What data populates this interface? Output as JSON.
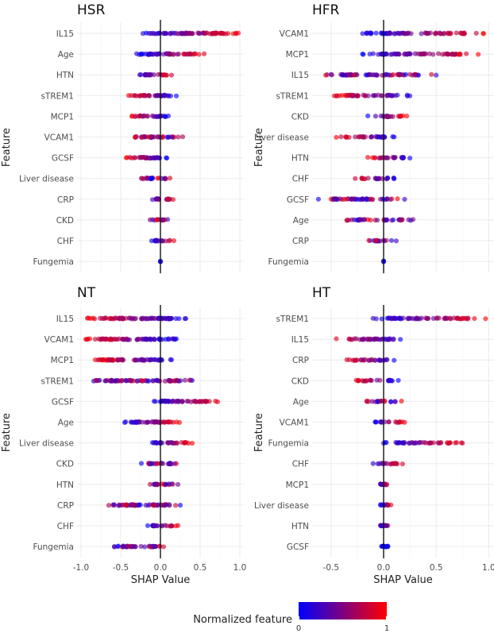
{
  "legend": {
    "title": "Normalized feature",
    "min_label": "0",
    "max_label": "1",
    "color_low": "#0000ff",
    "color_high": "#ff0000"
  },
  "colors": {
    "point_low": "#0000ff",
    "point_high": "#ff0000",
    "zero_line": "#000000",
    "grid": "#ebebeb"
  },
  "chart_data": [
    {
      "type": "scatter",
      "title": "HSR",
      "xlabel": "SHAP Value",
      "ylabel": "Feature",
      "xlim": [
        -1.05,
        1.05
      ],
      "xticks": [
        -1.0,
        -0.5,
        0.0,
        0.5,
        1.0
      ],
      "xtick_labels": [
        "-1.0",
        "-0.5",
        "0.0",
        "0.5",
        "1.0"
      ],
      "show_xticks": false,
      "grid": true,
      "features": [
        {
          "name": "IL15",
          "min": -0.22,
          "max": 0.98,
          "color_trend": "increasing"
        },
        {
          "name": "Age",
          "min": -0.3,
          "max": 0.55,
          "color_trend": "increasing"
        },
        {
          "name": "HTN",
          "min": -0.26,
          "max": 0.14,
          "color_trend": "increasing"
        },
        {
          "name": "sTREM1",
          "min": -0.4,
          "max": 0.2,
          "color_trend": "decreasing"
        },
        {
          "name": "MCP1",
          "min": -0.36,
          "max": 0.1,
          "color_trend": "decreasing"
        },
        {
          "name": "VCAM1",
          "min": -0.32,
          "max": 0.28,
          "color_trend": "mixed"
        },
        {
          "name": "GCSF",
          "min": -0.43,
          "max": 0.08,
          "color_trend": "decreasing"
        },
        {
          "name": "Liver disease",
          "min": -0.24,
          "max": 0.12,
          "color_trend": "mixed"
        },
        {
          "name": "CRP",
          "min": -0.1,
          "max": 0.16,
          "color_trend": "mixed"
        },
        {
          "name": "CKD",
          "min": -0.13,
          "max": 0.09,
          "color_trend": "mixed"
        },
        {
          "name": "CHF",
          "min": -0.11,
          "max": 0.17,
          "color_trend": "increasing"
        },
        {
          "name": "Fungemia",
          "min": 0.0,
          "max": 0.0,
          "color_trend": "low"
        }
      ]
    },
    {
      "type": "scatter",
      "title": "HFR",
      "xlabel": "SHAP Value",
      "ylabel": "Feature",
      "xlim": [
        -0.68,
        1.05
      ],
      "xticks": [
        -0.5,
        0.0,
        0.5,
        1.0
      ],
      "xtick_labels": [
        "-0.5",
        "0.0",
        "0.5",
        "1.0"
      ],
      "show_xticks": false,
      "grid": true,
      "features": [
        {
          "name": "VCAM1",
          "min": -0.2,
          "max": 0.95,
          "color_trend": "increasing"
        },
        {
          "name": "MCP1",
          "min": -0.2,
          "max": 0.9,
          "color_trend": "increasing"
        },
        {
          "name": "IL15",
          "min": -0.55,
          "max": 0.5,
          "color_trend": "mixed"
        },
        {
          "name": "sTREM1",
          "min": -0.47,
          "max": 0.25,
          "color_trend": "decreasing"
        },
        {
          "name": "CKD",
          "min": -0.15,
          "max": 0.22,
          "color_trend": "increasing"
        },
        {
          "name": "Liver disease",
          "min": -0.45,
          "max": 0.1,
          "color_trend": "decreasing"
        },
        {
          "name": "HTN",
          "min": -0.15,
          "max": 0.25,
          "color_trend": "decreasing"
        },
        {
          "name": "CHF",
          "min": -0.27,
          "max": 0.1,
          "color_trend": "decreasing"
        },
        {
          "name": "GCSF",
          "min": -0.62,
          "max": 0.2,
          "color_trend": "mixed"
        },
        {
          "name": "Age",
          "min": -0.35,
          "max": 0.28,
          "color_trend": "mixed"
        },
        {
          "name": "CRP",
          "min": -0.14,
          "max": 0.12,
          "color_trend": "mixed"
        },
        {
          "name": "Fungemia",
          "min": 0.0,
          "max": 0.0,
          "color_trend": "low"
        }
      ]
    },
    {
      "type": "scatter",
      "title": "NT",
      "xlabel": "SHAP Value",
      "ylabel": "Feature",
      "xlim": [
        -1.05,
        1.05
      ],
      "xticks": [
        -1.0,
        -0.5,
        0.0,
        0.5,
        1.0
      ],
      "xtick_labels": [
        "-1.0",
        "-0.5",
        "0.0",
        "0.5",
        "1.0"
      ],
      "show_xticks": true,
      "grid": true,
      "features": [
        {
          "name": "IL15",
          "min": -0.92,
          "max": 0.32,
          "color_trend": "decreasing"
        },
        {
          "name": "VCAM1",
          "min": -0.94,
          "max": 0.2,
          "color_trend": "decreasing"
        },
        {
          "name": "MCP1",
          "min": -0.82,
          "max": 0.14,
          "color_trend": "decreasing"
        },
        {
          "name": "sTREM1",
          "min": -0.84,
          "max": 0.4,
          "color_trend": "mixed"
        },
        {
          "name": "GCSF",
          "min": -0.08,
          "max": 0.72,
          "color_trend": "increasing"
        },
        {
          "name": "Age",
          "min": -0.45,
          "max": 0.24,
          "color_trend": "increasing"
        },
        {
          "name": "Liver disease",
          "min": -0.1,
          "max": 0.4,
          "color_trend": "increasing"
        },
        {
          "name": "CKD",
          "min": -0.24,
          "max": 0.2,
          "color_trend": "mixed"
        },
        {
          "name": "HTN",
          "min": -0.13,
          "max": 0.22,
          "color_trend": "mixed"
        },
        {
          "name": "CRP",
          "min": -0.65,
          "max": 0.25,
          "color_trend": "mixed"
        },
        {
          "name": "CHF",
          "min": -0.16,
          "max": 0.22,
          "color_trend": "increasing"
        },
        {
          "name": "Fungemia",
          "min": -0.58,
          "max": 0.04,
          "color_trend": "mixed"
        }
      ]
    },
    {
      "type": "scatter",
      "title": "HT",
      "xlabel": "SHAP Value",
      "ylabel": "Feature",
      "xlim": [
        -0.68,
        1.05
      ],
      "xticks": [
        -0.5,
        0.0,
        0.5,
        1.0
      ],
      "xtick_labels": [
        "-0.5",
        "0.0",
        "0.5",
        "1.0"
      ],
      "show_xticks": true,
      "grid": true,
      "features": [
        {
          "name": "sTREM1",
          "min": -0.1,
          "max": 0.97,
          "color_trend": "increasing"
        },
        {
          "name": "IL15",
          "min": -0.45,
          "max": 0.16,
          "color_trend": "decreasing"
        },
        {
          "name": "CRP",
          "min": -0.35,
          "max": 0.1,
          "color_trend": "decreasing"
        },
        {
          "name": "CKD",
          "min": -0.26,
          "max": 0.14,
          "color_trend": "decreasing"
        },
        {
          "name": "Age",
          "min": -0.16,
          "max": 0.17,
          "color_trend": "mixed"
        },
        {
          "name": "VCAM1",
          "min": -0.08,
          "max": 0.2,
          "color_trend": "increasing"
        },
        {
          "name": "Fungemia",
          "min": 0.0,
          "max": 0.75,
          "color_trend": "increasing"
        },
        {
          "name": "CHF",
          "min": -0.1,
          "max": 0.18,
          "color_trend": "increasing"
        },
        {
          "name": "MCP1",
          "min": -0.03,
          "max": 0.03,
          "color_trend": "mixed"
        },
        {
          "name": "Liver disease",
          "min": -0.03,
          "max": 0.07,
          "color_trend": "increasing"
        },
        {
          "name": "HTN",
          "min": -0.03,
          "max": 0.04,
          "color_trend": "mixed"
        },
        {
          "name": "GCSF",
          "min": -0.02,
          "max": 0.04,
          "color_trend": "low"
        }
      ]
    }
  ]
}
